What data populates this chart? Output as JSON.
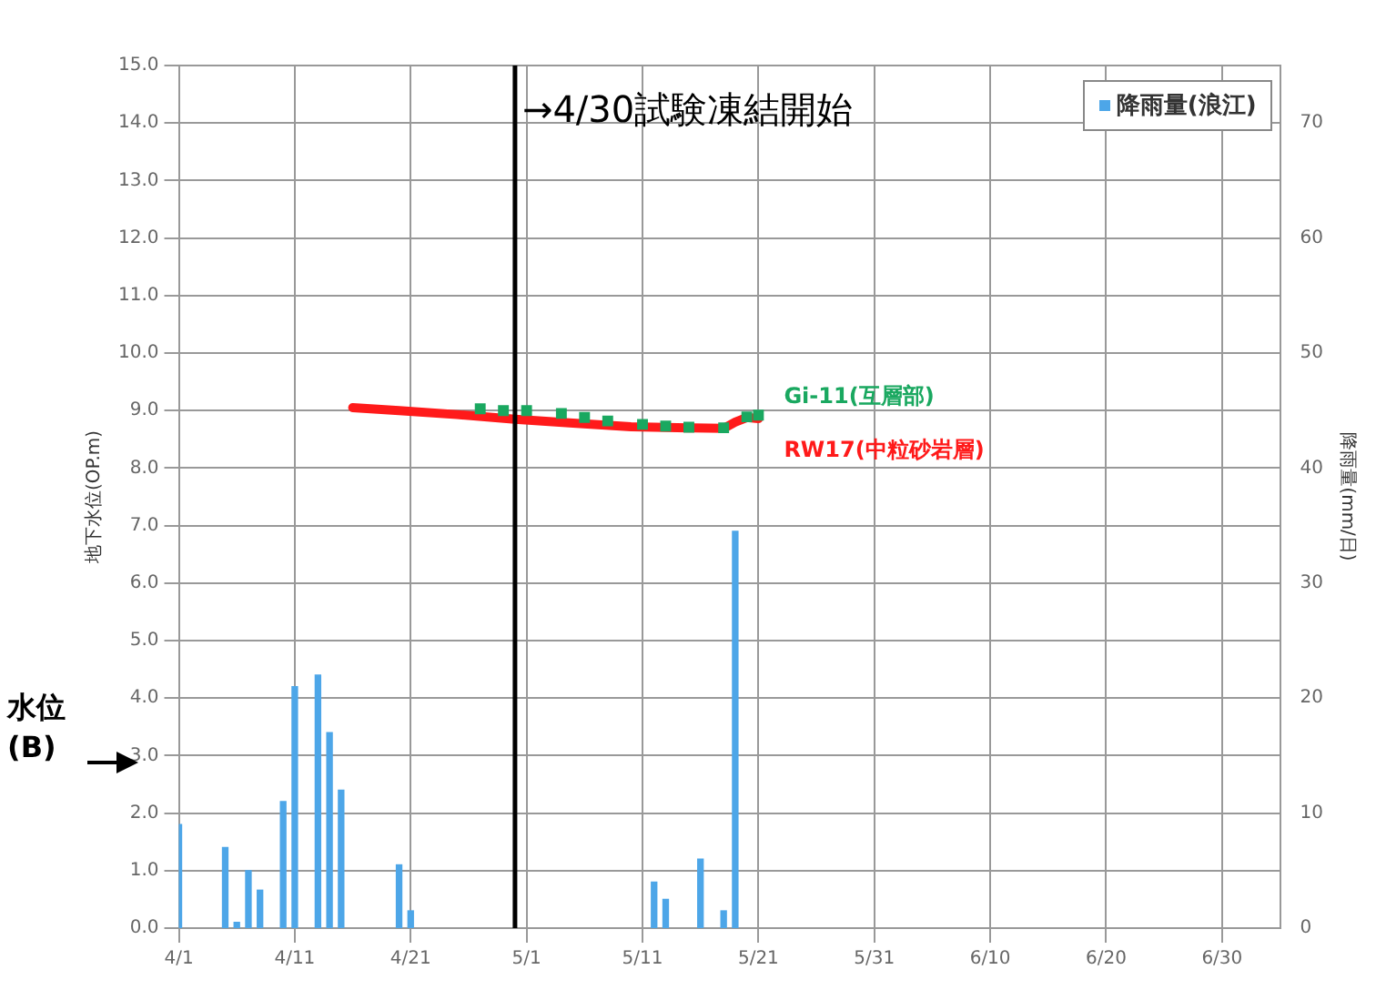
{
  "chart_data": {
    "type": "line",
    "ylabel": "地下水位(OP.m)",
    "y2label": "降雨量(mm/日)",
    "xlim": [
      "--04-01",
      "--07-05"
    ],
    "xticks": [
      {
        "value": "--04-01",
        "label": "4/1"
      },
      {
        "value": "--04-11",
        "label": "4/11"
      },
      {
        "value": "--04-21",
        "label": "4/21"
      },
      {
        "value": "--05-01",
        "label": "5/1"
      },
      {
        "value": "--05-11",
        "label": "5/11"
      },
      {
        "value": "--05-21",
        "label": "5/21"
      },
      {
        "value": "--05-31",
        "label": "5/31"
      },
      {
        "value": "--06-10",
        "label": "6/10"
      },
      {
        "value": "--06-20",
        "label": "6/20"
      },
      {
        "value": "--06-30",
        "label": "6/30"
      }
    ],
    "ylim": [
      0,
      15
    ],
    "yticks": [
      {
        "value": 0,
        "label": "0.0"
      },
      {
        "value": 1,
        "label": "1.0"
      },
      {
        "value": 2,
        "label": "2.0"
      },
      {
        "value": 3,
        "label": "3.0"
      },
      {
        "value": 4,
        "label": "4.0"
      },
      {
        "value": 5,
        "label": "5.0"
      },
      {
        "value": 6,
        "label": "6.0"
      },
      {
        "value": 7,
        "label": "7.0"
      },
      {
        "value": 8,
        "label": "8.0"
      },
      {
        "value": 9,
        "label": "9.0"
      },
      {
        "value": 10,
        "label": "10.0"
      },
      {
        "value": 11,
        "label": "11.0"
      },
      {
        "value": 12,
        "label": "12.0"
      },
      {
        "value": 13,
        "label": "13.0"
      },
      {
        "value": 14,
        "label": "14.0"
      },
      {
        "value": 15,
        "label": "15.0"
      }
    ],
    "y2lim": [
      0,
      75
    ],
    "y2ticks": [
      0,
      10,
      20,
      30,
      40,
      50,
      60,
      70
    ],
    "grid": true,
    "legend": "top right",
    "series": [
      {
        "name": "降雨量(浪江)",
        "type": "bar",
        "axis": "y2",
        "color": "#4da6e8",
        "x": [
          "--04-01",
          "--04-05",
          "--04-06",
          "--04-07",
          "--04-08",
          "--04-10",
          "--04-11",
          "--04-13",
          "--04-14",
          "--04-15",
          "--04-20",
          "--04-21",
          "--05-12",
          "--05-13",
          "--05-16",
          "--05-18",
          "--05-19"
        ],
        "values": [
          9,
          7,
          0.5,
          5,
          3.3,
          11,
          21,
          22,
          17,
          12,
          5.5,
          1.5,
          4,
          2.5,
          6,
          1.5,
          34.5
        ]
      },
      {
        "name": "Gi-11(互層部)",
        "type": "scatter",
        "marker": "square",
        "color": "#1aa860",
        "x": [
          "--04-27",
          "--04-29",
          "--05-01",
          "--05-04",
          "--05-06",
          "--05-08",
          "--05-11",
          "--05-13",
          "--05-15",
          "--05-18",
          "--05-20",
          "--05-21"
        ],
        "values": [
          9.03,
          9.0,
          9.0,
          8.95,
          8.88,
          8.82,
          8.76,
          8.73,
          8.71,
          8.7,
          8.89,
          8.92
        ]
      },
      {
        "name": "RW17(中粒砂岩層)",
        "marker": "none",
        "color": "#ff1a1a",
        "x": [
          "--04-16",
          "--04-20",
          "--04-25",
          "--04-30",
          "--05-05",
          "--05-10",
          "--05-15",
          "--05-18",
          "--05-19",
          "--05-20",
          "--05-21"
        ],
        "values": [
          9.05,
          9.0,
          8.93,
          8.85,
          8.78,
          8.72,
          8.7,
          8.69,
          8.8,
          8.88,
          8.86
        ]
      }
    ],
    "ref_lines": [
      {
        "axis": "x",
        "value": "--04-30",
        "label": "→4/30試験凍結開始",
        "color": "#000000"
      }
    ],
    "annotations": [
      "水位(B)"
    ]
  }
}
